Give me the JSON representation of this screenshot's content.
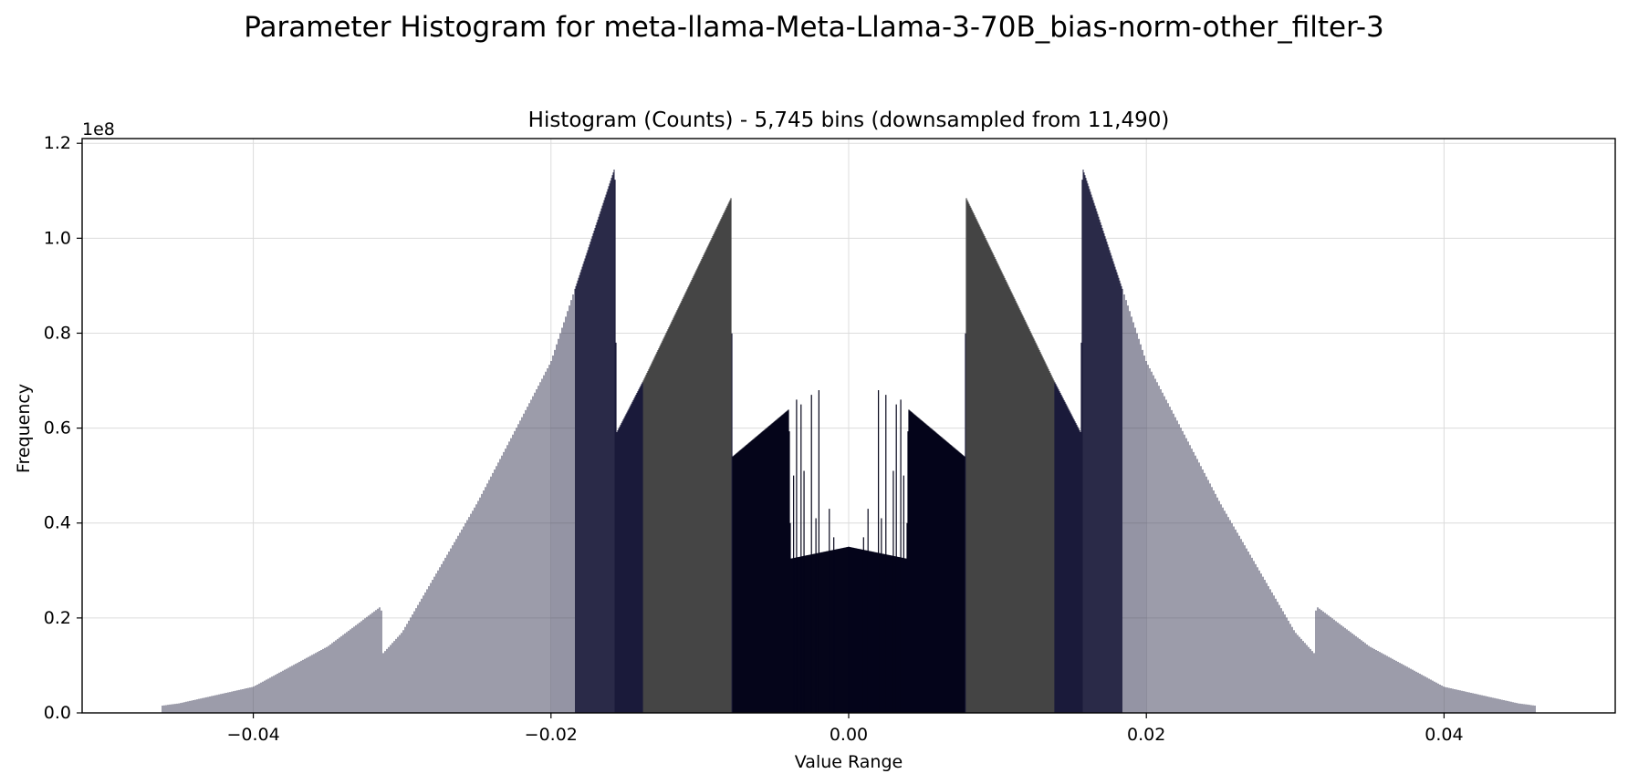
{
  "figure": {
    "suptitle": "Parameter Histogram for meta-llama-Meta-Llama-3-70B_bias-norm-other_filter-3"
  },
  "chart_data": {
    "type": "bar",
    "title": "Histogram (Counts) - 5,745 bins (downsampled from 11,490)",
    "xlabel": "Value Range",
    "ylabel": "Frequency",
    "y_scale_label": "1e8",
    "y_scale": 100000000,
    "xlim": [
      -0.0515,
      0.0515
    ],
    "ylim": [
      0,
      121000000
    ],
    "xticks": [
      -0.04,
      -0.02,
      0.0,
      0.02,
      0.04
    ],
    "xtick_labels": [
      "−0.04",
      "−0.02",
      "0.00",
      "0.02",
      "0.04"
    ],
    "yticks": [
      0,
      20000000,
      40000000,
      60000000,
      80000000,
      100000000,
      120000000
    ],
    "ytick_labels": [
      "0.0",
      "0.2",
      "0.4",
      "0.6",
      "0.8",
      "1.0",
      "1.2"
    ],
    "grid": true,
    "legend": false,
    "bar_colors": {
      "dark": "#1a1a3a",
      "gray": "#454545"
    },
    "profile": {
      "description_of_values": "Frequency (counts) per bin center, piecewise linear; symmetric around 0",
      "points": [
        [
          0.0,
          35000000
        ],
        [
          0.0039,
          32500000
        ],
        [
          0.004,
          64000000
        ],
        [
          0.0078,
          54000000
        ],
        [
          0.0079,
          108500000
        ],
        [
          0.0138,
          70000000
        ],
        [
          0.0156,
          59000000
        ],
        [
          0.0157,
          115000000
        ],
        [
          0.02,
          74000000
        ],
        [
          0.025,
          44000000
        ],
        [
          0.03,
          17000000
        ],
        [
          0.0313,
          12500000
        ],
        [
          0.0314,
          22500000
        ],
        [
          0.035,
          14000000
        ],
        [
          0.04,
          5500000
        ],
        [
          0.045,
          2000000
        ],
        [
          0.0462,
          1500000
        ]
      ],
      "spikes": [
        [
          0.001,
          37000000
        ],
        [
          0.0013,
          43000000
        ],
        [
          0.0022,
          41000000
        ],
        [
          0.003,
          51000000
        ],
        [
          0.0037,
          50000000
        ],
        [
          0.002,
          68000000
        ],
        [
          0.0025,
          67000000
        ],
        [
          0.0032,
          65000000
        ],
        [
          0.0035,
          66000000
        ]
      ]
    }
  }
}
